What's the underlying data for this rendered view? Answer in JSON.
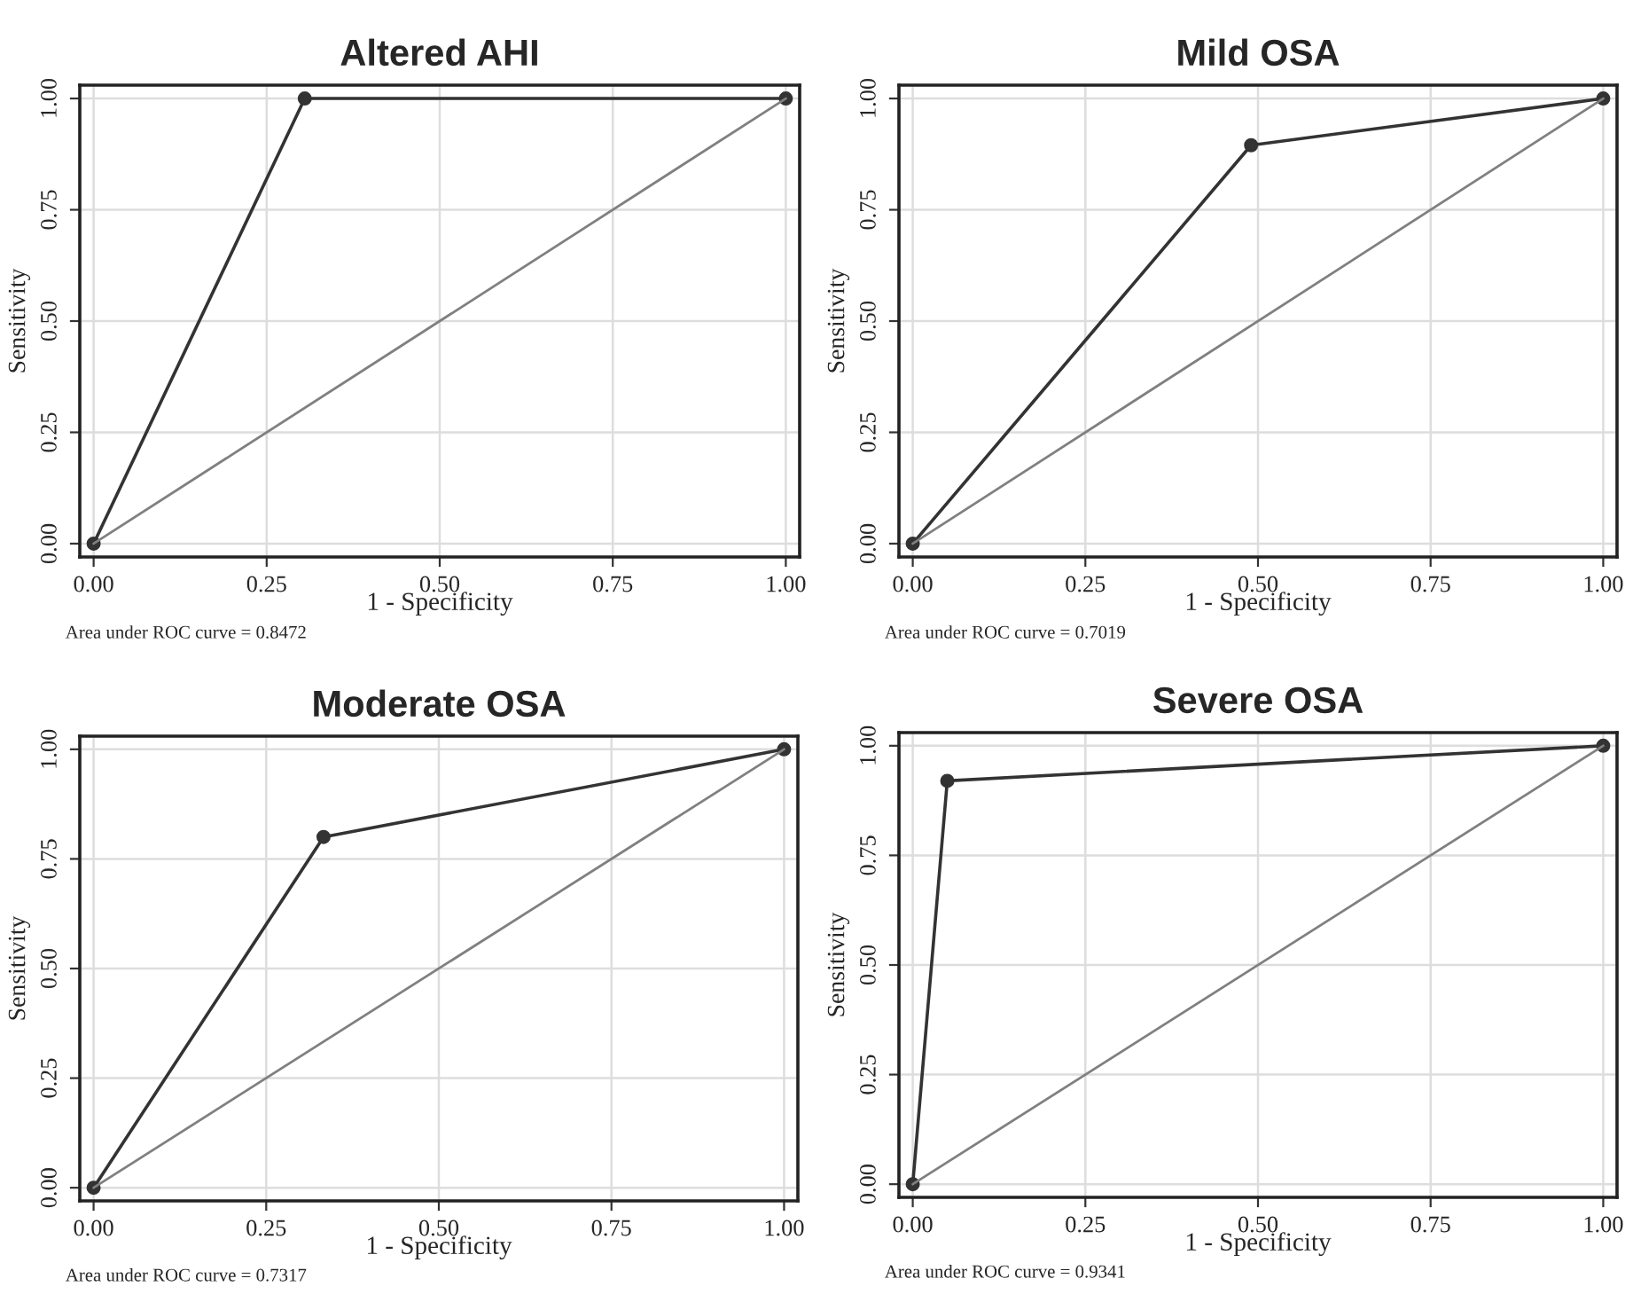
{
  "chart_data": [
    {
      "type": "line",
      "title": "Altered AHI",
      "xlabel": "1 - Specificity",
      "ylabel": "Sensitivity",
      "annotations": [
        "Area under ROC curve = 0.8472"
      ],
      "xlim": [
        -0.02,
        1.02
      ],
      "ylim": [
        -0.03,
        1.03
      ],
      "xticks": [
        {
          "value": 0,
          "label": "0.00"
        },
        {
          "value": 0.25,
          "label": "0.25"
        },
        {
          "value": 0.5,
          "label": "0.50"
        },
        {
          "value": 0.75,
          "label": "0.75"
        },
        {
          "value": 1,
          "label": "1.00"
        }
      ],
      "yticks": [
        {
          "value": 0,
          "label": "0.00"
        },
        {
          "value": 0.25,
          "label": "0.25"
        },
        {
          "value": 0.5,
          "label": "0.50"
        },
        {
          "value": 0.75,
          "label": "0.75"
        },
        {
          "value": 1,
          "label": "1.00"
        }
      ],
      "grid": true,
      "line_style": "solid",
      "series": [
        {
          "color": "#333333",
          "marker": "circle",
          "x": [
            0,
            0.305,
            1
          ],
          "values": [
            0,
            1,
            1
          ]
        },
        {
          "color": "#808080",
          "marker": "none",
          "x": [
            0,
            1
          ],
          "values": [
            0,
            1
          ]
        }
      ]
    },
    {
      "type": "line",
      "title": "Mild OSA",
      "xlabel": "1 - Specificity",
      "ylabel": "Sensitivity",
      "annotations": [
        "Area under ROC curve = 0.7019"
      ],
      "xlim": [
        -0.02,
        1.02
      ],
      "ylim": [
        -0.03,
        1.03
      ],
      "xticks": [
        {
          "value": 0,
          "label": "0.00"
        },
        {
          "value": 0.25,
          "label": "0.25"
        },
        {
          "value": 0.5,
          "label": "0.50"
        },
        {
          "value": 0.75,
          "label": "0.75"
        },
        {
          "value": 1,
          "label": "1.00"
        }
      ],
      "yticks": [
        {
          "value": 0,
          "label": "0.00"
        },
        {
          "value": 0.25,
          "label": "0.25"
        },
        {
          "value": 0.5,
          "label": "0.50"
        },
        {
          "value": 0.75,
          "label": "0.75"
        },
        {
          "value": 1,
          "label": "1.00"
        }
      ],
      "grid": true,
      "line_style": "solid",
      "series": [
        {
          "color": "#333333",
          "marker": "circle",
          "x": [
            0,
            0.49,
            1
          ],
          "values": [
            0,
            0.895,
            1
          ]
        },
        {
          "color": "#808080",
          "marker": "none",
          "x": [
            0,
            1
          ],
          "values": [
            0,
            1
          ]
        }
      ]
    },
    {
      "type": "line",
      "title": "Moderate OSA",
      "xlabel": "1 - Specificity",
      "ylabel": "Sensitivity",
      "annotations": [
        "Area under ROC curve = 0.7317"
      ],
      "xlim": [
        -0.02,
        1.02
      ],
      "ylim": [
        -0.03,
        1.03
      ],
      "xticks": [
        {
          "value": 0,
          "label": "0.00"
        },
        {
          "value": 0.25,
          "label": "0.25"
        },
        {
          "value": 0.5,
          "label": "0.50"
        },
        {
          "value": 0.75,
          "label": "0.75"
        },
        {
          "value": 1,
          "label": "1.00"
        }
      ],
      "yticks": [
        {
          "value": 0,
          "label": "0.00"
        },
        {
          "value": 0.25,
          "label": "0.25"
        },
        {
          "value": 0.5,
          "label": "0.50"
        },
        {
          "value": 0.75,
          "label": "0.75"
        },
        {
          "value": 1,
          "label": "1.00"
        }
      ],
      "grid": true,
      "line_style": "solid",
      "series": [
        {
          "color": "#333333",
          "marker": "circle",
          "x": [
            0,
            0.333,
            1
          ],
          "values": [
            0,
            0.8,
            1
          ]
        },
        {
          "color": "#808080",
          "marker": "none",
          "x": [
            0,
            1
          ],
          "values": [
            0,
            1
          ]
        }
      ]
    },
    {
      "type": "line",
      "title": "Severe OSA",
      "xlabel": "1 - Specificity",
      "ylabel": "Sensitivity",
      "annotations": [
        "Area under ROC curve = 0.9341"
      ],
      "xlim": [
        -0.02,
        1.02
      ],
      "ylim": [
        -0.03,
        1.03
      ],
      "xticks": [
        {
          "value": 0,
          "label": "0.00"
        },
        {
          "value": 0.25,
          "label": "0.25"
        },
        {
          "value": 0.5,
          "label": "0.50"
        },
        {
          "value": 0.75,
          "label": "0.75"
        },
        {
          "value": 1,
          "label": "1.00"
        }
      ],
      "yticks": [
        {
          "value": 0,
          "label": "0.00"
        },
        {
          "value": 0.25,
          "label": "0.25"
        },
        {
          "value": 0.5,
          "label": "0.50"
        },
        {
          "value": 0.75,
          "label": "0.75"
        },
        {
          "value": 1,
          "label": "1.00"
        }
      ],
      "grid": true,
      "line_style": "solid",
      "series": [
        {
          "color": "#333333",
          "marker": "circle",
          "x": [
            0,
            0.05,
            1
          ],
          "values": [
            0,
            0.92,
            1
          ]
        },
        {
          "color": "#808080",
          "marker": "none",
          "x": [
            0,
            1
          ],
          "values": [
            0,
            1
          ]
        }
      ]
    }
  ]
}
